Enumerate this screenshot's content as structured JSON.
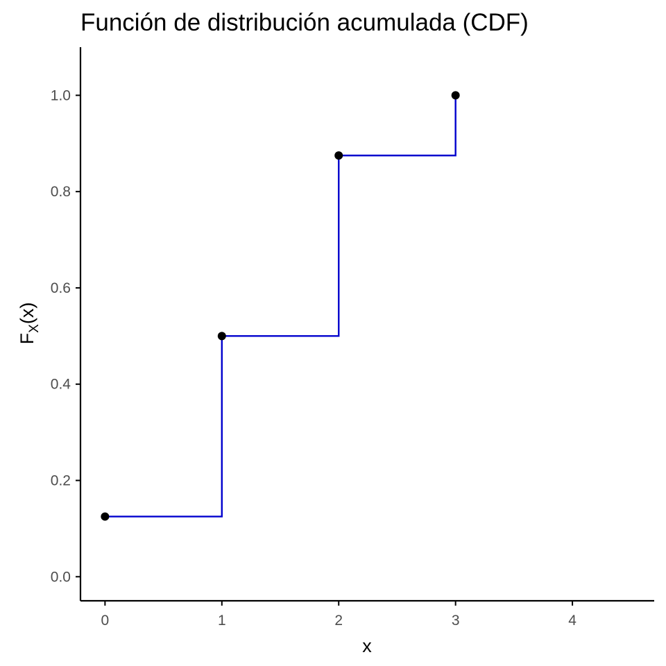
{
  "chart_data": {
    "type": "line",
    "step": "post",
    "title": "Función de distribución acumulada (CDF)",
    "xlabel": "x",
    "ylabel": {
      "main": "F",
      "subscript": "X",
      "suffix": "(x)"
    },
    "x": [
      0,
      1,
      2,
      3
    ],
    "y": [
      0.125,
      0.5,
      0.875,
      1.0
    ],
    "xlim": [
      -0.21,
      4.7
    ],
    "ylim": [
      -0.05,
      1.1
    ],
    "x_ticks": [
      0,
      1,
      2,
      3,
      4
    ],
    "x_tick_labels": [
      "0",
      "1",
      "2",
      "3",
      "4"
    ],
    "y_ticks": [
      0,
      0.2,
      0.4,
      0.6,
      0.8,
      1.0
    ],
    "y_tick_labels": [
      "0.0",
      "0.2",
      "0.4",
      "0.6",
      "0.8",
      "1.0"
    ],
    "grid": false,
    "colors": {
      "line": "#0000CD",
      "points": "#000000",
      "axis": "#000000",
      "tick_label": "#4d4d4d"
    }
  }
}
